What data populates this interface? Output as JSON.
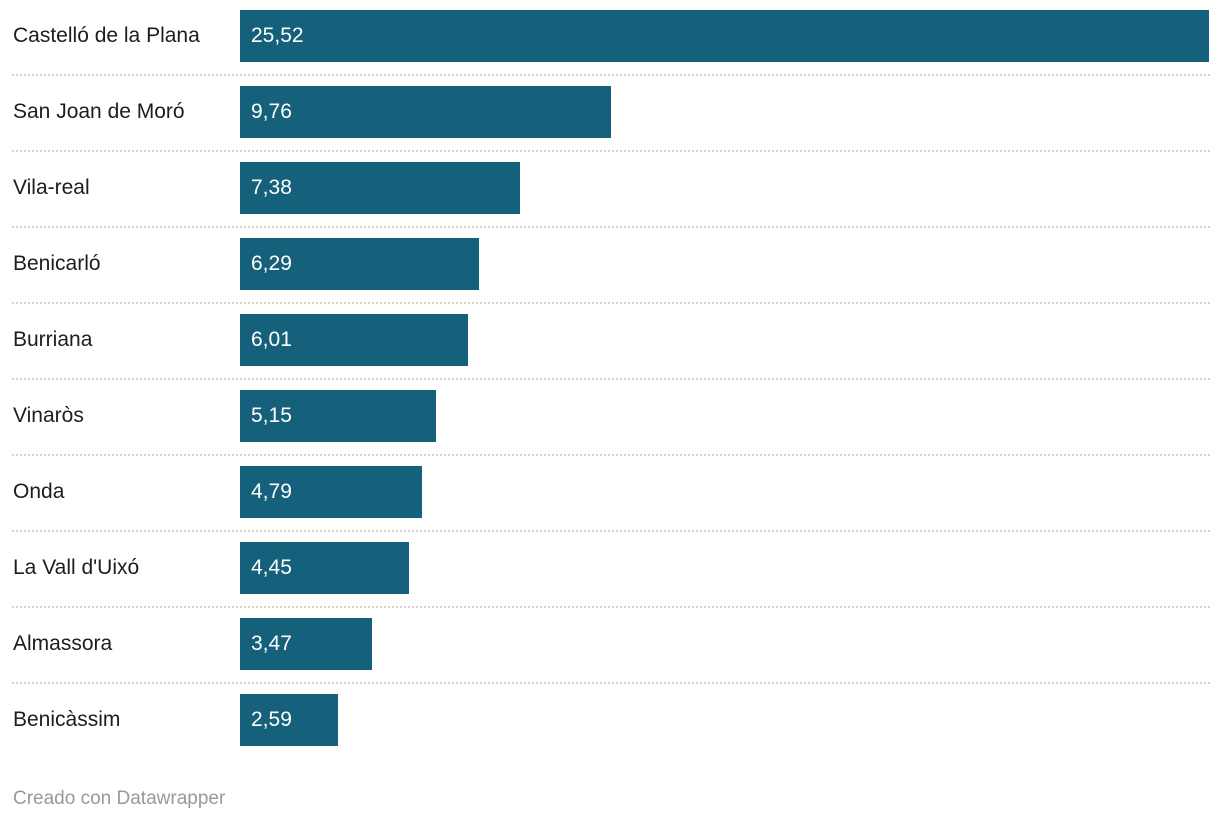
{
  "chart_data": {
    "type": "bar",
    "orientation": "horizontal",
    "title": "",
    "xlabel": "",
    "ylabel": "",
    "xlim": [
      0,
      25.52
    ],
    "grid": false,
    "legend": false,
    "bar_color": "#15607a",
    "categories": [
      "Castelló de la Plana",
      "San Joan de Moró",
      "Vila-real",
      "Benicarló",
      "Burriana",
      "Vinaròs",
      "Onda",
      "La Vall d'Uixó",
      "Almassora",
      "Benicàssim"
    ],
    "values": [
      25.52,
      9.76,
      7.38,
      6.29,
      6.01,
      5.15,
      4.79,
      4.45,
      3.47,
      2.59
    ],
    "value_labels": [
      "25,52",
      "9,76",
      "7,38",
      "6,29",
      "6,01",
      "5,15",
      "4,79",
      "4,45",
      "3,47",
      "2,59"
    ]
  },
  "footer": {
    "attribution": "Creado con Datawrapper"
  },
  "colors": {
    "bar": "#15607a",
    "label_text": "#1d1d1d",
    "value_text": "#ffffff",
    "separator": "#d2d2d2",
    "attribution_text": "#999999",
    "background": "#ffffff"
  }
}
